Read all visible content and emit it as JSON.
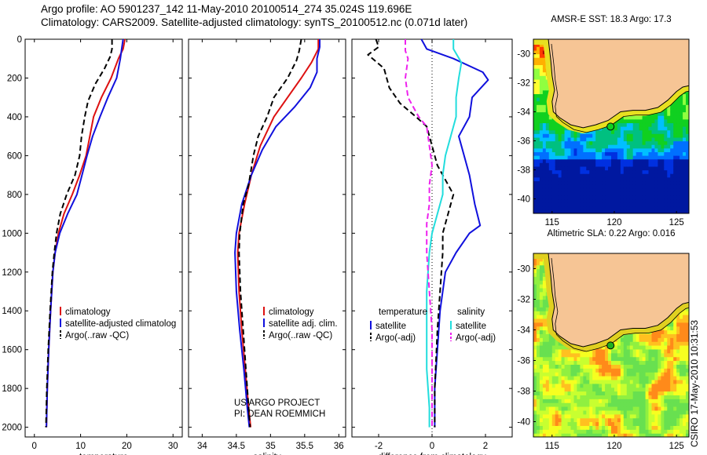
{
  "header": {
    "line1": "Argo profile: AO 5901237_142 11-May-2010 20100514_274 35.024S 119.696E",
    "line2": "Climatology: CARS2009. Satellite-adjusted climatology: synTS_20100512.nc (0.071d later)"
  },
  "stamp": "CSIRO 17-May-2010 10:31:53",
  "colors": {
    "clim": "#dd1111",
    "sat": "#1010dd",
    "argo": "#000000",
    "sal_sat": "#22dddd",
    "sal_argo": "#ee22ee",
    "land": "#f6c595"
  },
  "chart_data": [
    {
      "type": "line",
      "id": "temperature",
      "xlabel": "temperature",
      "xlim": [
        -2,
        32
      ],
      "ylim": [
        0,
        2050
      ],
      "xticks": [
        0,
        10,
        20,
        30
      ],
      "yticks": [
        0,
        200,
        400,
        600,
        800,
        1000,
        1200,
        1400,
        1600,
        1800,
        2000
      ],
      "legend": {
        "position": "bottom-left",
        "entries": [
          "climatology",
          "satellite-adjusted climatolog",
          "Argo(..raw -QC)"
        ]
      },
      "series": [
        {
          "name": "climatology",
          "color": "clim",
          "dash": false,
          "points": [
            [
              19.6,
              0
            ],
            [
              19.2,
              50
            ],
            [
              18.2,
              100
            ],
            [
              16.6,
              200
            ],
            [
              14.5,
              300
            ],
            [
              12.8,
              400
            ],
            [
              11.2,
              600
            ],
            [
              9.8,
              700
            ],
            [
              8.2,
              800
            ],
            [
              6.4,
              900
            ],
            [
              5.2,
              1000
            ],
            [
              4.5,
              1100
            ],
            [
              4.0,
              1200
            ],
            [
              3.5,
              1400
            ],
            [
              3.1,
              1600
            ],
            [
              2.8,
              1800
            ],
            [
              2.6,
              2000
            ]
          ]
        },
        {
          "name": "satellite-adjusted climatolog",
          "color": "sat",
          "dash": false,
          "points": [
            [
              19.2,
              0
            ],
            [
              18.9,
              50
            ],
            [
              18.6,
              100
            ],
            [
              17.8,
              200
            ],
            [
              15.9,
              300
            ],
            [
              14.2,
              400
            ],
            [
              12.6,
              500
            ],
            [
              11.4,
              600
            ],
            [
              10.3,
              700
            ],
            [
              9.2,
              800
            ],
            [
              7.2,
              900
            ],
            [
              5.5,
              1000
            ],
            [
              4.5,
              1100
            ],
            [
              4.0,
              1200
            ],
            [
              3.5,
              1400
            ],
            [
              3.1,
              1600
            ],
            [
              2.8,
              1800
            ],
            [
              2.6,
              2000
            ]
          ]
        },
        {
          "name": "Argo(..raw -QC)",
          "color": "argo",
          "dash": true,
          "points": [
            [
              16.8,
              0
            ],
            [
              16.8,
              50
            ],
            [
              16.4,
              90
            ],
            [
              15.2,
              150
            ],
            [
              13.2,
              230
            ],
            [
              11.6,
              320
            ],
            [
              10.9,
              400
            ],
            [
              10.2,
              500
            ],
            [
              9.8,
              600
            ],
            [
              8.8,
              700
            ],
            [
              7.0,
              800
            ],
            [
              5.6,
              900
            ],
            [
              4.8,
              1000
            ],
            [
              4.3,
              1100
            ],
            [
              3.9,
              1200
            ],
            [
              3.4,
              1400
            ],
            [
              3.0,
              1600
            ],
            [
              2.7,
              1800
            ],
            [
              2.5,
              2000
            ]
          ]
        }
      ]
    },
    {
      "type": "line",
      "id": "salinity",
      "xlabel": "salinity",
      "xlim": [
        33.8,
        36.1
      ],
      "ylim": [
        0,
        2050
      ],
      "xticks": [
        34,
        34.5,
        35,
        35.5,
        36
      ],
      "yticks": [
        0,
        200,
        400,
        600,
        800,
        1000,
        1200,
        1400,
        1600,
        1800,
        2000
      ],
      "legend": {
        "position": "bottom-center",
        "entries": [
          "climatology",
          "satellite adj. clim.",
          "Argo(..raw -QC)"
        ]
      },
      "annotations": [
        "US ARGO PROJECT",
        "PI: DEAN ROEMMICH"
      ],
      "series": [
        {
          "name": "climatology",
          "color": "clim",
          "dash": false,
          "points": [
            [
              35.7,
              0
            ],
            [
              35.7,
              50
            ],
            [
              35.6,
              120
            ],
            [
              35.45,
              200
            ],
            [
              35.25,
              300
            ],
            [
              35.05,
              400
            ],
            [
              34.85,
              550
            ],
            [
              34.72,
              700
            ],
            [
              34.62,
              850
            ],
            [
              34.54,
              1000
            ],
            [
              34.52,
              1100
            ],
            [
              34.54,
              1300
            ],
            [
              34.58,
              1500
            ],
            [
              34.63,
              1700
            ],
            [
              34.68,
              1900
            ],
            [
              34.71,
              2000
            ]
          ]
        },
        {
          "name": "satellite adj. clim.",
          "color": "sat",
          "dash": false,
          "points": [
            [
              35.72,
              0
            ],
            [
              35.72,
              40
            ],
            [
              35.68,
              100
            ],
            [
              35.68,
              170
            ],
            [
              35.58,
              250
            ],
            [
              35.35,
              350
            ],
            [
              35.08,
              450
            ],
            [
              34.88,
              570
            ],
            [
              34.72,
              700
            ],
            [
              34.58,
              850
            ],
            [
              34.5,
              1000
            ],
            [
              34.48,
              1100
            ],
            [
              34.5,
              1300
            ],
            [
              34.55,
              1500
            ],
            [
              34.61,
              1700
            ],
            [
              34.66,
              1900
            ],
            [
              34.69,
              2000
            ]
          ]
        },
        {
          "name": "Argo(..raw -QC)",
          "color": "argo",
          "dash": true,
          "points": [
            [
              35.45,
              0
            ],
            [
              35.42,
              60
            ],
            [
              35.38,
              110
            ],
            [
              35.25,
              200
            ],
            [
              35.05,
              300
            ],
            [
              34.95,
              400
            ],
            [
              34.82,
              500
            ],
            [
              34.75,
              600
            ],
            [
              34.68,
              750
            ],
            [
              34.6,
              850
            ],
            [
              34.55,
              1000
            ],
            [
              34.54,
              1100
            ],
            [
              34.56,
              1300
            ],
            [
              34.6,
              1500
            ],
            [
              34.64,
              1700
            ],
            [
              34.68,
              1900
            ],
            [
              34.7,
              2000
            ]
          ]
        }
      ]
    },
    {
      "type": "line",
      "id": "difference",
      "xlabel": "difference from climatology",
      "xlim": [
        -3,
        3
      ],
      "ylim": [
        0,
        2050
      ],
      "xticks": [
        -2,
        0,
        2
      ],
      "yticks": [
        0,
        200,
        400,
        600,
        800,
        1000,
        1200,
        1400,
        1600,
        1800,
        2000
      ],
      "legend": {
        "position": "bottom",
        "temperature_header": "temperature",
        "salinity_header": "salinity",
        "entries": [
          "satellite",
          "Argo(-adj)",
          "satellite",
          "Argo(-adj)"
        ]
      },
      "series": [
        {
          "name": "temperature satellite",
          "color": "sat",
          "dash": false,
          "points": [
            [
              -0.4,
              0
            ],
            [
              -0.2,
              50
            ],
            [
              0.8,
              100
            ],
            [
              1.9,
              170
            ],
            [
              2.1,
              210
            ],
            [
              1.5,
              300
            ],
            [
              1.4,
              400
            ],
            [
              1.0,
              500
            ],
            [
              1.2,
              600
            ],
            [
              1.4,
              700
            ],
            [
              1.6,
              850
            ],
            [
              1.8,
              960
            ],
            [
              1.4,
              1000
            ],
            [
              0.9,
              1100
            ],
            [
              0.5,
              1200
            ],
            [
              0.3,
              1400
            ],
            [
              0.2,
              1600
            ],
            [
              0.1,
              1800
            ],
            [
              0.1,
              2000
            ]
          ]
        },
        {
          "name": "temperature Argo(-adj)",
          "color": "argo",
          "dash": true,
          "points": [
            [
              -2.1,
              0
            ],
            [
              -2.0,
              40
            ],
            [
              -2.4,
              80
            ],
            [
              -1.8,
              150
            ],
            [
              -1.6,
              250
            ],
            [
              -1.2,
              330
            ],
            [
              -0.6,
              400
            ],
            [
              -0.2,
              450
            ],
            [
              0.0,
              550
            ],
            [
              0.2,
              650
            ],
            [
              0.6,
              750
            ],
            [
              0.8,
              800
            ],
            [
              0.6,
              900
            ],
            [
              0.4,
              1000
            ],
            [
              0.4,
              1100
            ],
            [
              0.3,
              1300
            ],
            [
              0.2,
              1500
            ],
            [
              0.1,
              1800
            ],
            [
              0.1,
              2000
            ]
          ]
        },
        {
          "name": "salinity satellite",
          "color": "sal_sat",
          "dash": false,
          "points": [
            [
              0.8,
              0
            ],
            [
              0.8,
              50
            ],
            [
              1.1,
              120
            ],
            [
              1.0,
              200
            ],
            [
              0.9,
              300
            ],
            [
              0.9,
              400
            ],
            [
              0.7,
              500
            ],
            [
              0.5,
              600
            ],
            [
              0.4,
              700
            ],
            [
              0.4,
              800
            ],
            [
              0.2,
              900
            ],
            [
              0.0,
              1000
            ],
            [
              -0.1,
              1100
            ],
            [
              -0.2,
              1300
            ],
            [
              -0.2,
              1500
            ],
            [
              -0.2,
              1700
            ],
            [
              -0.1,
              1900
            ],
            [
              -0.1,
              2000
            ]
          ]
        },
        {
          "name": "salinity Argo(-adj)",
          "color": "sal_argo",
          "dash": true,
          "points": [
            [
              -1.0,
              0
            ],
            [
              -1.0,
              60
            ],
            [
              -0.9,
              100
            ],
            [
              -1.0,
              200
            ],
            [
              -0.9,
              300
            ],
            [
              -0.5,
              400
            ],
            [
              -0.2,
              450
            ],
            [
              -0.1,
              550
            ],
            [
              0.0,
              650
            ],
            [
              -0.1,
              750
            ],
            [
              -0.1,
              850
            ],
            [
              -0.2,
              950
            ],
            [
              -0.2,
              1100
            ],
            [
              -0.1,
              1300
            ],
            [
              0.0,
              1500
            ],
            [
              0.0,
              1700
            ],
            [
              0.0,
              1900
            ],
            [
              0.0,
              2000
            ]
          ]
        }
      ]
    },
    {
      "type": "heatmap",
      "id": "sst-map",
      "title": "AMSR-E SST: 18.3 Argo: 17.3",
      "xlim": [
        113.5,
        126
      ],
      "ylim": [
        -41,
        -29
      ],
      "xticks": [
        115,
        120,
        125
      ],
      "yticks": [
        -30,
        -32,
        -34,
        -36,
        -38,
        -40
      ],
      "float_position": [
        119.7,
        -35.02
      ]
    },
    {
      "type": "heatmap",
      "id": "sla-map",
      "title": "Altimetric SLA: 0.22 Argo: 0.016",
      "xlim": [
        113.5,
        126
      ],
      "ylim": [
        -41,
        -29
      ],
      "xticks": [
        115,
        120,
        125
      ],
      "yticks": [
        -30,
        -32,
        -34,
        -36,
        -38,
        -40
      ],
      "float_position": [
        119.7,
        -35.02
      ]
    }
  ]
}
